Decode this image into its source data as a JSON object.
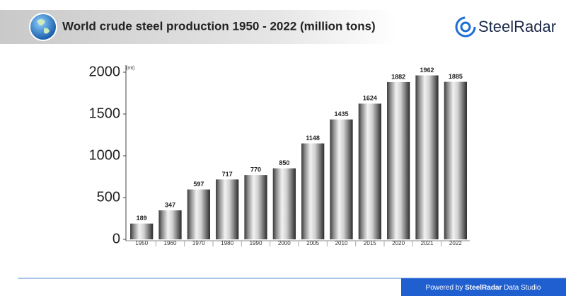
{
  "chart_data": {
    "type": "bar",
    "title": "World crude steel production 1950 - 2022 (million tons)",
    "brand": "SteelRadar",
    "y_unit": "(mt)",
    "categories": [
      "1950",
      "1960",
      "1970",
      "1980",
      "1990",
      "2000",
      "2005",
      "2010",
      "2015",
      "2020",
      "2021",
      "2022"
    ],
    "values": [
      189,
      347,
      597,
      717,
      770,
      850,
      1148,
      1435,
      1624,
      1882,
      1962,
      1885
    ],
    "ylim": [
      0,
      2000
    ],
    "yticks": [
      0,
      500,
      1000,
      1500,
      2000
    ],
    "grid": false,
    "footer": {
      "prefix": "Powered by",
      "brand": "SteelRadar",
      "suffix": "Data Studio"
    }
  }
}
